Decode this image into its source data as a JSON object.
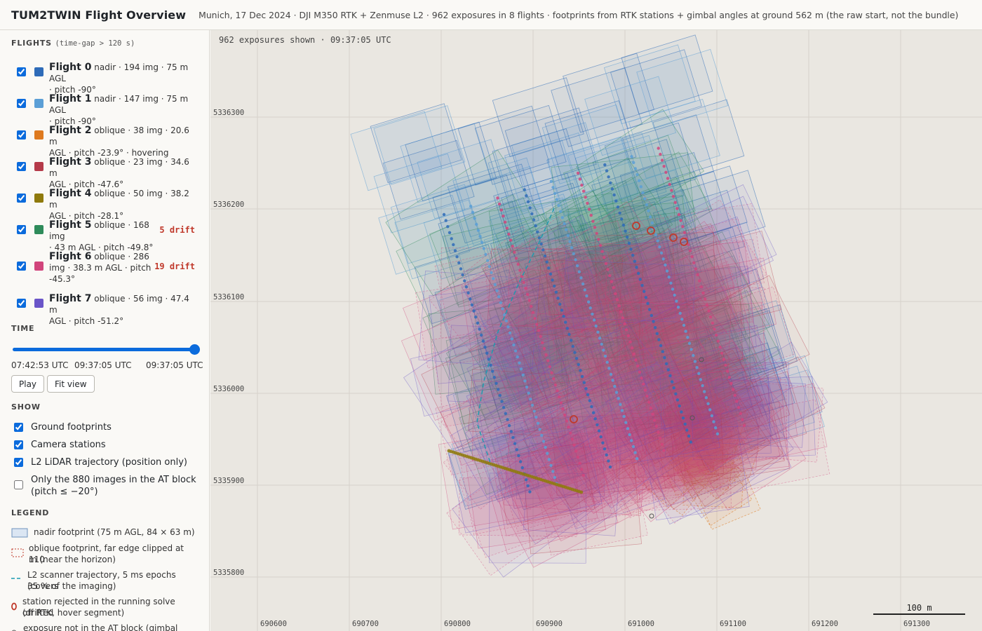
{
  "header": {
    "title": "TUM2TWIN Flight Overview",
    "subtitle": "Munich, 17 Dec 2024 · DJI M350 RTK + Zenmuse L2 · 962 exposures in 8 flights · footprints from RTK stations + gimbal angles at ground 562 m (the raw start, not the bundle)"
  },
  "flights_section": {
    "title": "FLIGHTS",
    "subtitle": "(time-gap > 120 s)"
  },
  "flights": [
    {
      "name": "Flight 0",
      "line1": "nadir · 194 img · 75 m AGL",
      "line2": "· pitch -90°",
      "line3": "",
      "color": "#2e6bb8",
      "drift": "",
      "checked": true
    },
    {
      "name": "Flight 1",
      "line1": "nadir · 147 img · 75 m AGL",
      "line2": "· pitch -90°",
      "line3": "",
      "color": "#5b9fd6",
      "drift": "",
      "checked": true
    },
    {
      "name": "Flight 2",
      "line1": "oblique · 38 img · 20.6 m",
      "line2": "AGL · pitch -23.9° · hovering",
      "line3": "",
      "color": "#de7a1f",
      "drift": "",
      "checked": true
    },
    {
      "name": "Flight 3",
      "line1": "oblique · 23 img · 34.6 m",
      "line2": "AGL · pitch -47.6°",
      "line3": "",
      "color": "#b53a49",
      "drift": "",
      "checked": true
    },
    {
      "name": "Flight 4",
      "line1": "oblique · 50 img · 38.2 m",
      "line2": "AGL · pitch -28.1°",
      "line3": "",
      "color": "#8f7a0c",
      "drift": "",
      "checked": true
    },
    {
      "name": "Flight 5",
      "line1": "oblique · 168 img",
      "line2": "· 43 m AGL · pitch -49.8°",
      "line3": "",
      "color": "#2e8b5a",
      "drift": "5 drift",
      "checked": true
    },
    {
      "name": "Flight 6",
      "line1": "oblique · 286",
      "line2": "img · 38.3 m AGL · pitch",
      "line3": "-45.3°",
      "color": "#d1457c",
      "drift": "19 drift",
      "checked": true
    },
    {
      "name": "Flight 7",
      "line1": "oblique · 56 img · 47.4 m",
      "line2": "AGL · pitch -51.2°",
      "line3": "",
      "color": "#6a55c8",
      "drift": "",
      "checked": true
    }
  ],
  "time": {
    "title": "TIME",
    "start": "07:42:53 UTC",
    "current": "09:37:05 UTC",
    "end": "09:37:05 UTC",
    "slider_fraction": 1.0,
    "play_label": "Play",
    "fit_label": "Fit view"
  },
  "show": {
    "title": "SHOW",
    "items": [
      {
        "label": "Ground footprints",
        "checked": true
      },
      {
        "label": "Camera stations",
        "checked": true
      },
      {
        "label": "L2 LiDAR trajectory (position only)",
        "checked": true
      },
      {
        "label": "Only the 880 images in the AT block",
        "label2": "(pitch ≤ −20°)",
        "checked": false
      }
    ]
  },
  "legend": {
    "title": "LEGEND",
    "items": [
      {
        "line1": "nadir footprint (75 m AGL, 84 × 63 m)",
        "line2": ""
      },
      {
        "line1": "oblique footprint, far edge clipped at 110",
        "line2": "m (near the horizon)"
      },
      {
        "line1": "L2 scanner trajectory, 5 ms epochs (covers",
        "line2": "35 % of the imaging)"
      },
      {
        "line1": "station rejected in the running solve (drifted",
        "line2": "off RTK, hover segment)"
      },
      {
        "line1": "exposure not in the AT block (gimbal pitch >",
        "line2": ""
      }
    ]
  },
  "map": {
    "status": "962 exposures shown · 09:37:05 UTC",
    "y_ticks": [
      "5336300",
      "5336200",
      "5336100",
      "5336000",
      "5335900",
      "5335800"
    ],
    "x_ticks": [
      "690600",
      "690700",
      "690800",
      "690900",
      "691000",
      "691100",
      "691200",
      "691300"
    ],
    "scale_label": "100 m"
  }
}
